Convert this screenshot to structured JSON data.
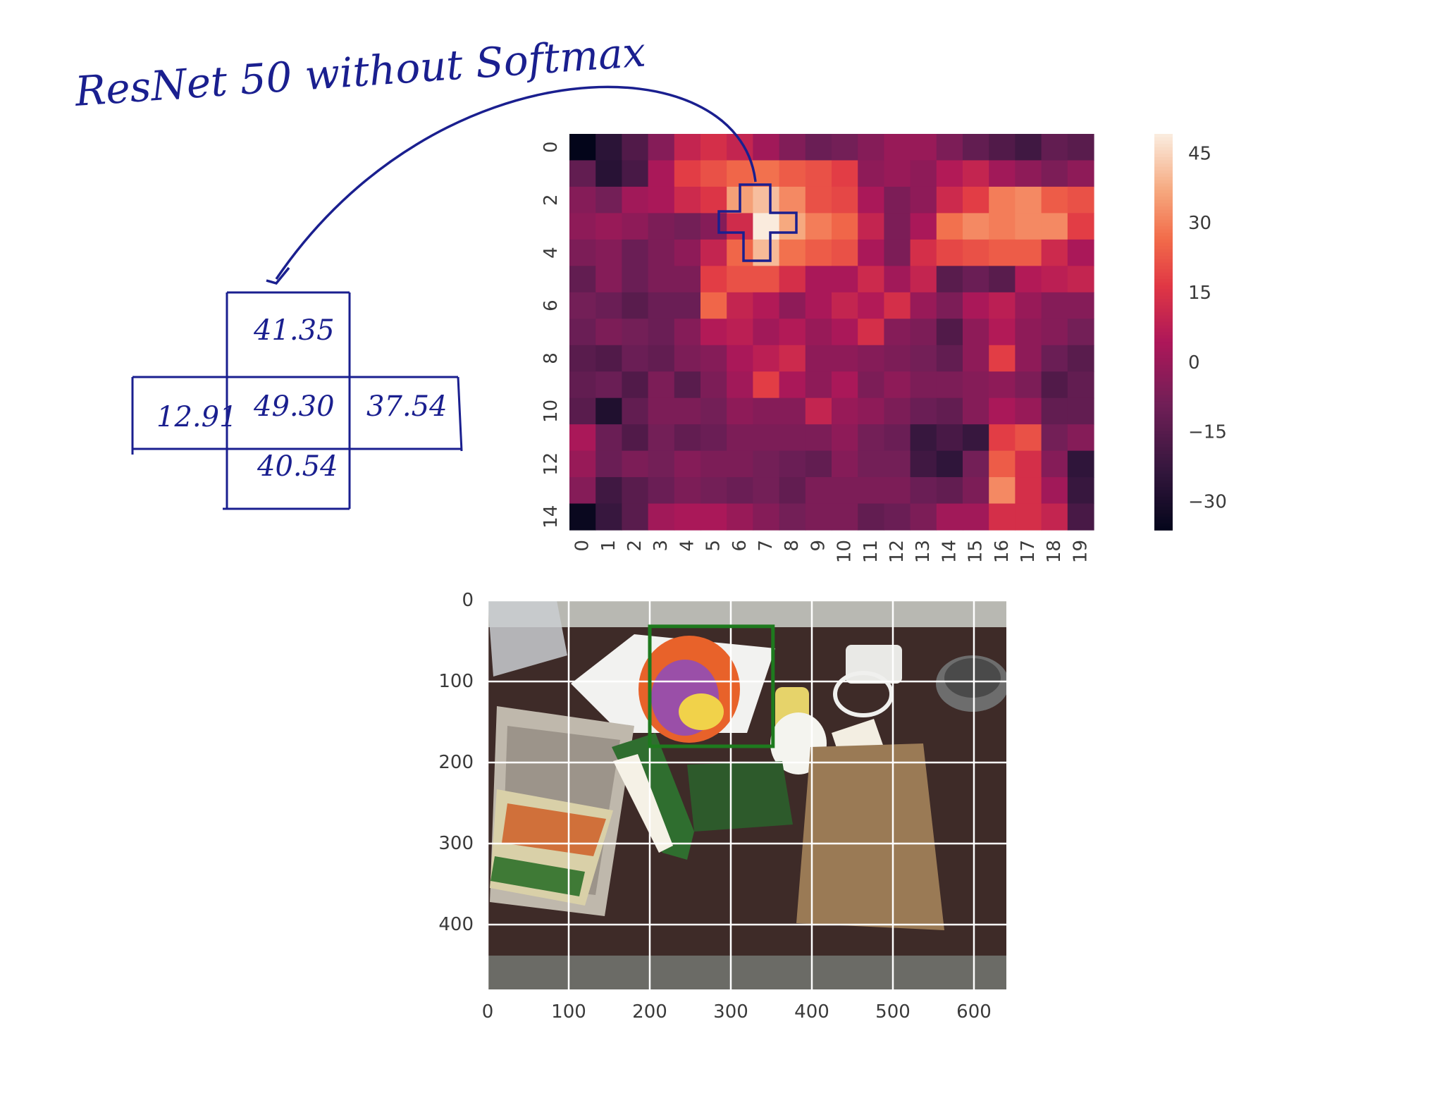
{
  "annotation": {
    "title": "ResNet 50 without Softmax",
    "cross_values": {
      "top": "41.35",
      "left": "12.91",
      "center": "49.30",
      "right": "37.54",
      "bottom": "40.54"
    }
  },
  "chart_data": [
    {
      "type": "heatmap",
      "rows": 15,
      "cols": 20,
      "x_ticks": [
        "0",
        "1",
        "2",
        "3",
        "4",
        "5",
        "6",
        "7",
        "8",
        "9",
        "10",
        "11",
        "12",
        "13",
        "14",
        "15",
        "16",
        "17",
        "18",
        "19"
      ],
      "y_ticks": [
        "0",
        "2",
        "4",
        "6",
        "8",
        "10",
        "12",
        "14"
      ],
      "colorbar": {
        "ticks": [
          "45",
          "30",
          "15",
          "0",
          "−15",
          "−30"
        ],
        "range": [
          -36,
          49.3
        ],
        "colormap": "rocket"
      },
      "values": [
        [
          -36,
          -25,
          -16,
          -4,
          10,
          14,
          10,
          2,
          -5,
          -10,
          -8,
          -4,
          0,
          0,
          -6,
          -12,
          -16,
          -20,
          -12,
          -14
        ],
        [
          -12,
          -26,
          -18,
          4,
          18,
          22,
          26,
          28,
          24,
          22,
          18,
          -2,
          0,
          -2,
          6,
          10,
          2,
          -2,
          -6,
          -2
        ],
        [
          -4,
          -8,
          2,
          4,
          12,
          16,
          36,
          41.35,
          32,
          22,
          20,
          4,
          -6,
          -2,
          12,
          18,
          30,
          32,
          24,
          22
        ],
        [
          -2,
          0,
          -2,
          -6,
          -8,
          -4,
          12.91,
          49.3,
          37.54,
          30,
          26,
          10,
          -6,
          4,
          28,
          32,
          30,
          32,
          32,
          18
        ],
        [
          -6,
          -4,
          -10,
          -6,
          -2,
          10,
          26,
          40.54,
          28,
          24,
          22,
          4,
          -6,
          14,
          20,
          22,
          24,
          24,
          12,
          4
        ],
        [
          -12,
          -4,
          -10,
          -6,
          -6,
          18,
          22,
          22,
          14,
          4,
          4,
          12,
          2,
          10,
          -14,
          -10,
          -14,
          6,
          8,
          10
        ],
        [
          -8,
          -10,
          -14,
          -10,
          -10,
          26,
          10,
          6,
          -2,
          4,
          10,
          6,
          14,
          0,
          -6,
          4,
          8,
          0,
          -4,
          -4
        ],
        [
          -10,
          -6,
          -8,
          -10,
          -4,
          6,
          8,
          2,
          6,
          0,
          4,
          14,
          -4,
          -6,
          -16,
          -2,
          6,
          -2,
          -4,
          -8
        ],
        [
          -14,
          -16,
          -10,
          -12,
          -6,
          -4,
          4,
          8,
          12,
          -2,
          -2,
          -4,
          -6,
          -8,
          -12,
          -2,
          18,
          -2,
          -10,
          -14
        ],
        [
          -12,
          -10,
          -16,
          -6,
          -14,
          -6,
          2,
          18,
          4,
          -2,
          4,
          -6,
          -2,
          -6,
          -6,
          -4,
          -2,
          -6,
          -16,
          -12
        ],
        [
          -14,
          -28,
          -12,
          -6,
          -6,
          -8,
          -2,
          -4,
          -4,
          10,
          0,
          -2,
          -6,
          -10,
          -12,
          -4,
          4,
          0,
          -12,
          -12
        ],
        [
          4,
          -10,
          -16,
          -8,
          -12,
          -10,
          -6,
          -6,
          -6,
          -6,
          -2,
          -8,
          -10,
          -22,
          -18,
          -22,
          18,
          22,
          -8,
          -4
        ],
        [
          0,
          -10,
          -6,
          -8,
          -4,
          -6,
          -6,
          -8,
          -10,
          -12,
          -4,
          -8,
          -8,
          -20,
          -24,
          -8,
          24,
          14,
          -4,
          -24
        ],
        [
          -4,
          -20,
          -14,
          -10,
          -6,
          -8,
          -10,
          -8,
          -12,
          -6,
          -6,
          -6,
          -6,
          -10,
          -12,
          -6,
          32,
          14,
          2,
          -22
        ],
        [
          -34,
          -22,
          -14,
          2,
          4,
          4,
          0,
          -4,
          -8,
          -6,
          -6,
          -12,
          -10,
          -6,
          2,
          2,
          14,
          14,
          10,
          -18
        ]
      ]
    },
    {
      "type": "image",
      "x_ticks": [
        "0",
        "100",
        "200",
        "300",
        "400",
        "500",
        "600"
      ],
      "y_ticks": [
        "0",
        "100",
        "200",
        "300",
        "400"
      ],
      "xlim": [
        0,
        640
      ],
      "ylim": [
        480,
        0
      ],
      "grid": true,
      "highlight_box": {
        "x0": 200,
        "y0": 32,
        "x1": 352,
        "y1": 180,
        "color": "#1e7a1e"
      }
    }
  ]
}
